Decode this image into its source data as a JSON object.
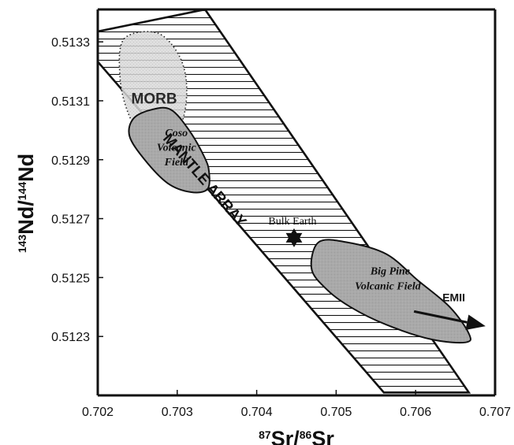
{
  "chart_data": {
    "type": "scatter",
    "xlabel": {
      "sup1": "87",
      "main1": "Sr/",
      "sup2": "86",
      "main2": "Sr"
    },
    "ylabel": {
      "sup1": "143",
      "main1": "Nd/",
      "sup2": "144",
      "main2": "Nd"
    },
    "xlim": [
      0.702,
      0.707
    ],
    "ylim": [
      0.5121,
      0.51341
    ],
    "x_ticks": [
      "0.702",
      "0.703",
      "0.704",
      "0.705",
      "0.706",
      "0.707"
    ],
    "y_ticks": [
      "0.5123",
      "0.5125",
      "0.5127",
      "0.5129",
      "0.5131",
      "0.5133"
    ],
    "grid": false,
    "regions": [
      {
        "name": "MANTLE ARRAY",
        "fill": "horizontal-hatch",
        "points": [
          [
            0.70172,
            0.51332
          ],
          [
            0.70335,
            0.51341
          ],
          [
            0.70667,
            0.51211
          ],
          [
            0.7056,
            0.51211
          ]
        ]
      },
      {
        "name": "MORB",
        "fill": "light-gray-stipple",
        "points": [
          [
            0.70233,
            0.51331
          ],
          [
            0.70275,
            0.51333
          ],
          [
            0.70303,
            0.51325
          ],
          [
            0.70312,
            0.51314
          ],
          [
            0.70305,
            0.51302
          ],
          [
            0.70283,
            0.51296
          ],
          [
            0.70258,
            0.51297
          ],
          [
            0.70238,
            0.51306
          ],
          [
            0.70228,
            0.51318
          ]
        ]
      },
      {
        "name": "Coso Volcanic Field",
        "fill": "gray",
        "points": [
          [
            0.70268,
            0.51307
          ],
          [
            0.70292,
            0.51307
          ],
          [
            0.70315,
            0.513
          ],
          [
            0.70334,
            0.51291
          ],
          [
            0.7034,
            0.51286
          ],
          [
            0.70338,
            0.5128
          ],
          [
            0.70317,
            0.51279
          ],
          [
            0.70288,
            0.51282
          ],
          [
            0.70259,
            0.5129
          ],
          [
            0.7024,
            0.51298
          ],
          [
            0.70245,
            0.51304
          ]
        ]
      },
      {
        "name": "Big Pine Volcanic Field",
        "fill": "gray",
        "points": [
          [
            0.70478,
            0.51262
          ],
          [
            0.70513,
            0.51262
          ],
          [
            0.70563,
            0.51258
          ],
          [
            0.70603,
            0.51249
          ],
          [
            0.70643,
            0.5124
          ],
          [
            0.70667,
            0.51231
          ],
          [
            0.70663,
            0.51228
          ],
          [
            0.7062,
            0.51229
          ],
          [
            0.70563,
            0.51234
          ],
          [
            0.70518,
            0.5124
          ],
          [
            0.70488,
            0.51246
          ],
          [
            0.70469,
            0.51253
          ]
        ]
      }
    ],
    "points": [
      {
        "label": "Bulk Earth",
        "x": 0.70447,
        "y": 0.512635,
        "marker": "star"
      }
    ],
    "arrow": {
      "label": "EMII",
      "from": [
        0.70598,
        0.512385
      ],
      "to": [
        0.70688,
        0.512335
      ]
    },
    "labels": {
      "mantle_array": "MANTLE ARRAY",
      "morb": "MORB",
      "coso_1": "Coso",
      "coso_2": "Volcanic",
      "coso_3": "Field",
      "bigpine_1": "Big Pine",
      "bigpine_2": "Volcanic Field",
      "bulk_earth": "Bulk Earth",
      "emii": "EMII"
    }
  }
}
